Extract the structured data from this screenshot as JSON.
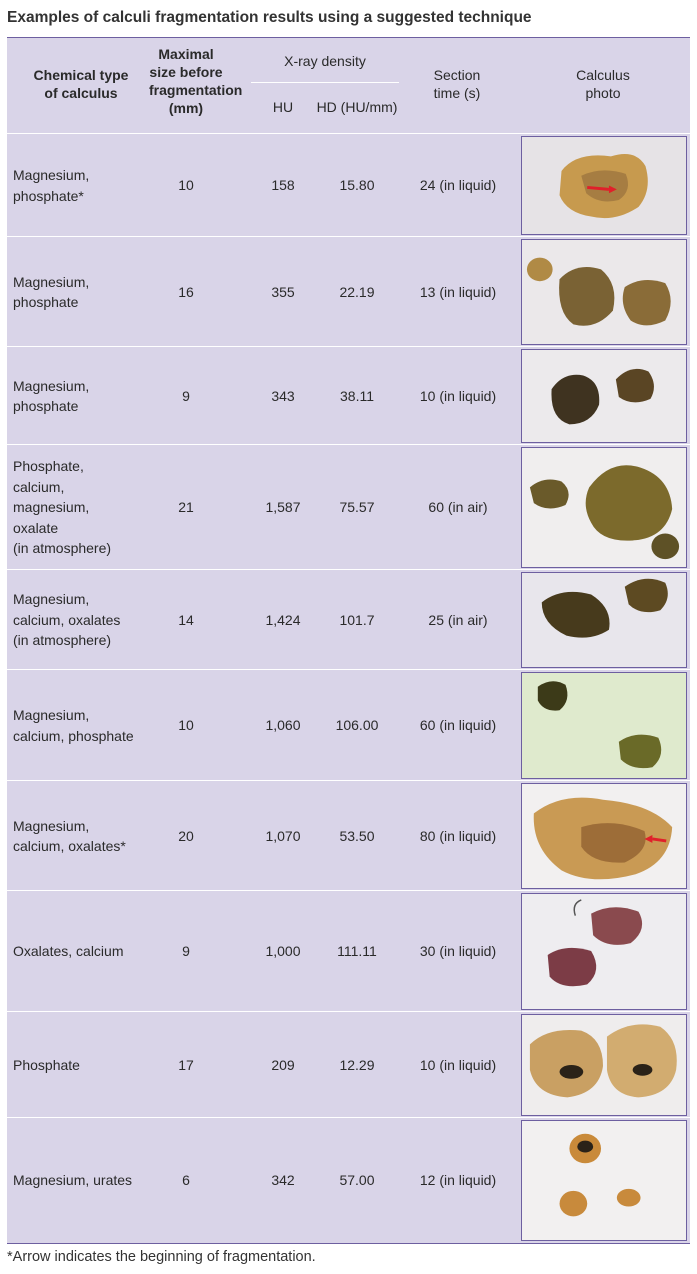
{
  "title": "Examples of calculi fragmentation results using a suggested technique",
  "headers": {
    "chemical_type": "Chemical type\nof calculus",
    "maximal_size": "Maximal\nsize before\nfragmentation\n(mm)",
    "xray_density": "X-ray density",
    "hu": "HU",
    "hd": "HD (HU/mm)",
    "section_time": "Section\ntime (s)",
    "calculus_photo": "Calculus\nphoto"
  },
  "rows": [
    {
      "type": "Magnesium,\nphosphate*",
      "size": "10",
      "hu": "158",
      "hd": "15.80",
      "time": "24 (in liquid)"
    },
    {
      "type": "Magnesium,\nphosphate",
      "size": "16",
      "hu": "355",
      "hd": "22.19",
      "time": "13 (in liquid)"
    },
    {
      "type": "Magnesium,\nphosphate",
      "size": "9",
      "hu": "343",
      "hd": "38.11",
      "time": "10 (in liquid)"
    },
    {
      "type": "Phosphate,\ncalcium,\nmagnesium,\noxalate\n(in atmosphere)",
      "size": "21",
      "hu": "1,587",
      "hd": "75.57",
      "time": "60 (in air)"
    },
    {
      "type": "Magnesium,\ncalcium, oxalates\n(in atmosphere)",
      "size": "14",
      "hu": "1,424",
      "hd": "101.7",
      "time": "25 (in air)"
    },
    {
      "type": "Magnesium,\ncalcium, phosphate",
      "size": "10",
      "hu": "1,060",
      "hd": "106.00",
      "time": "60 (in liquid)"
    },
    {
      "type": "Magnesium,\ncalcium, oxalates*",
      "size": "20",
      "hu": "1,070",
      "hd": "53.50",
      "time": "80 (in liquid)"
    },
    {
      "type": "Oxalates, calcium",
      "size": "9",
      "hu": "1,000",
      "hd": "111.11",
      "time": "30 (in liquid)"
    },
    {
      "type": "Phosphate",
      "size": "17",
      "hu": "209",
      "hd": "12.29",
      "time": "10 (in liquid)"
    },
    {
      "type": "Magnesium, urates",
      "size": "6",
      "hu": "342",
      "hd": "57.00",
      "time": "12 (in liquid)"
    }
  ],
  "footnote": "*Arrow indicates the beginning of fragmentation.",
  "colors": {
    "table_bg": "#d9d4e8",
    "border": "#6d5fa0",
    "arrow": "#e0202a"
  }
}
